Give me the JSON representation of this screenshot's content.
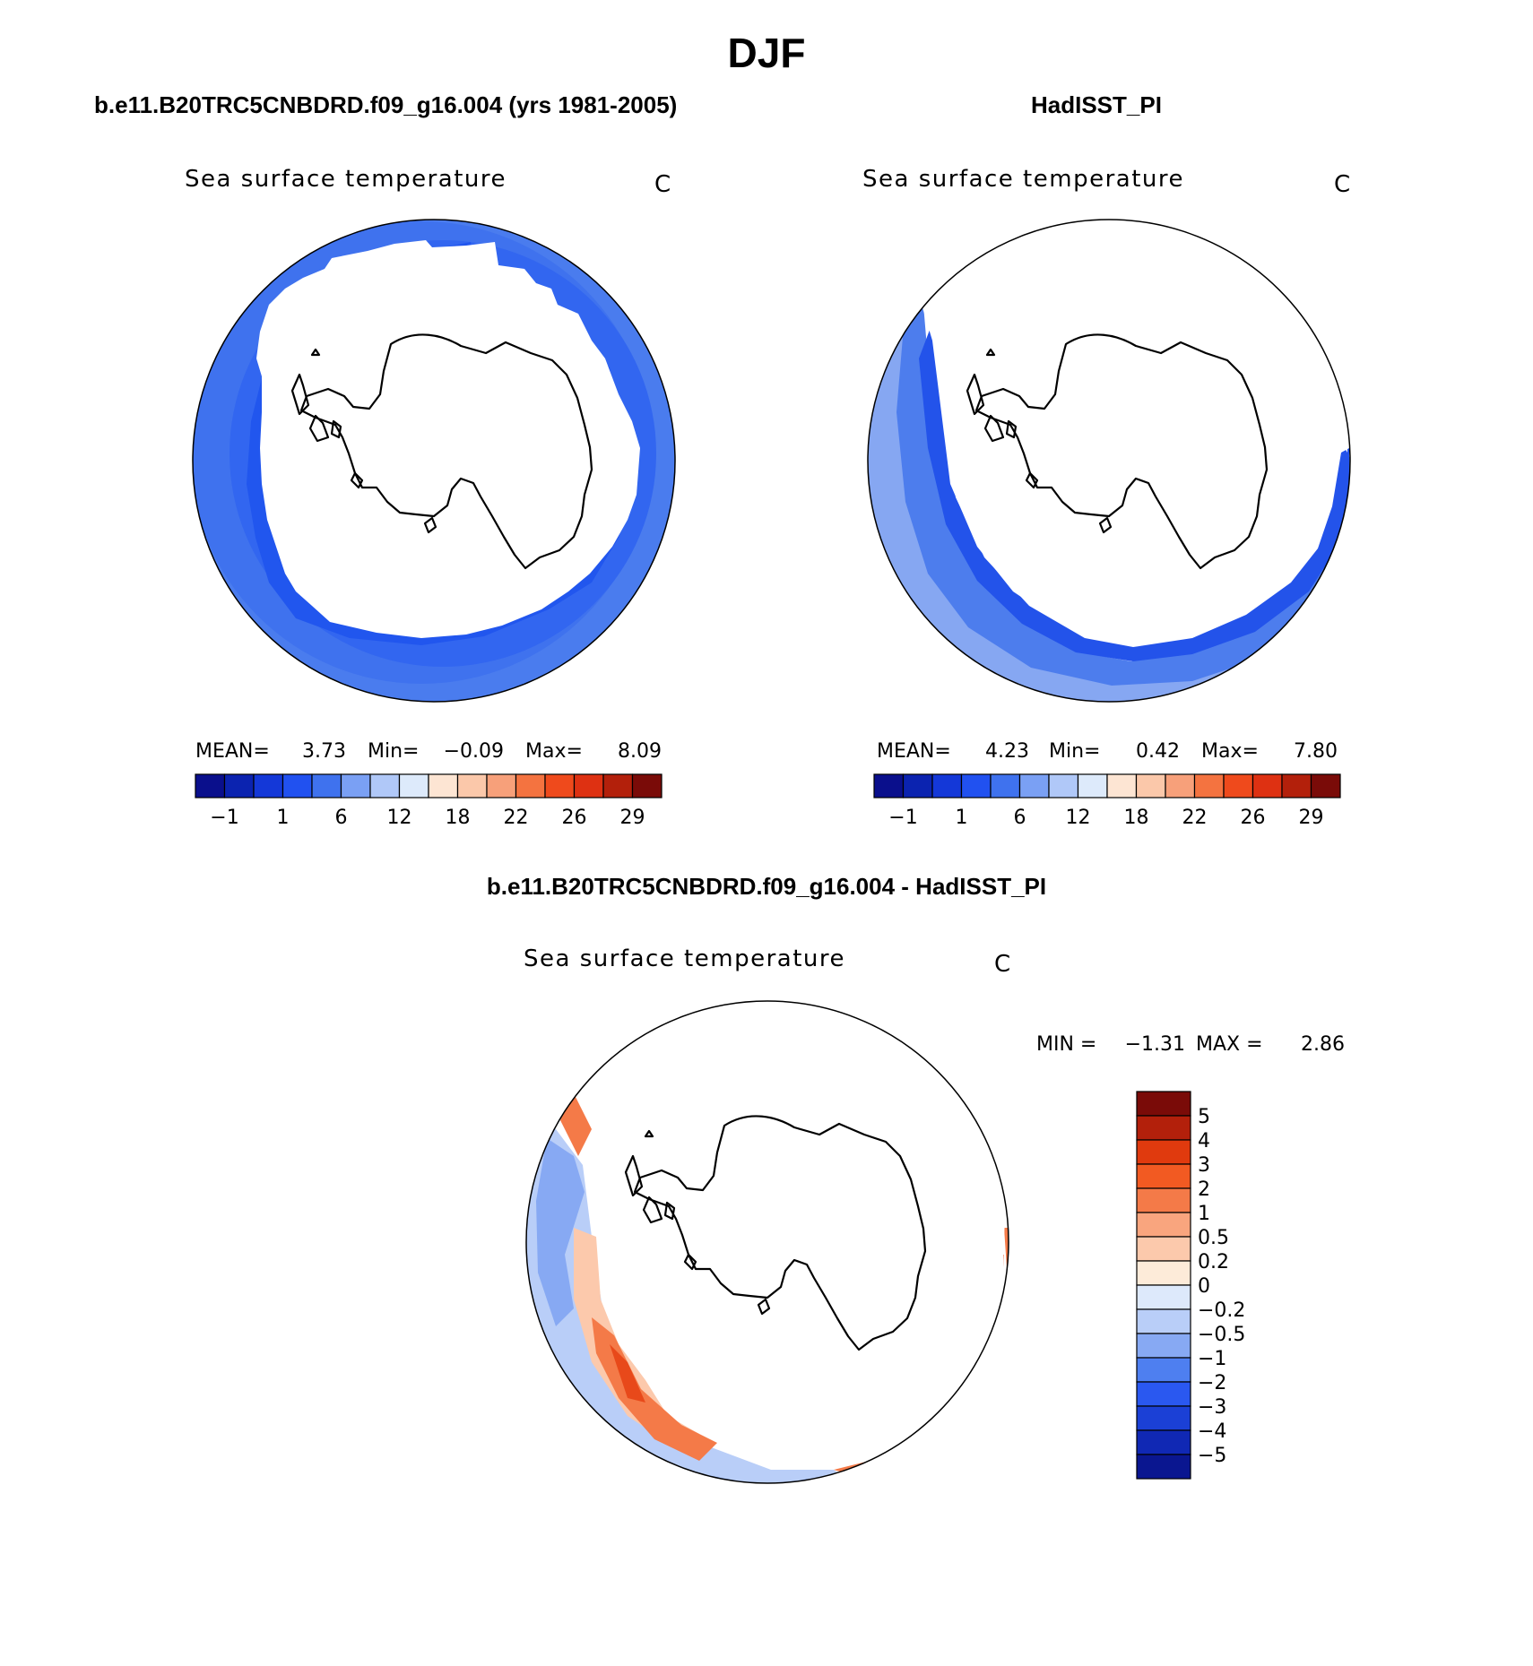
{
  "season": "DJF",
  "panels": [
    {
      "case_title": "b.e11.B20TRC5CNBDRD.f09_g16.004 (yrs 1981-2005)",
      "variable": "Sea surface temperature",
      "units": "C",
      "stats": {
        "mean_label": "MEAN=",
        "mean": "3.73",
        "min_label": "Min=",
        "min": "−0.09",
        "max_label": "Max=",
        "max": "8.09"
      },
      "colorbar": {
        "colors": [
          "#0a0f8c",
          "#0b23b0",
          "#1438d8",
          "#2151f0",
          "#3f72ee",
          "#7aa0f4",
          "#b0c8f8",
          "#ddeafb",
          "#fde5d3",
          "#fbc8aa",
          "#f7a07a",
          "#f47340",
          "#ef4a1c",
          "#de3112",
          "#b3200b",
          "#7a0b08"
        ],
        "tick_labels": [
          "−1",
          "1",
          "6",
          "12",
          "18",
          "22",
          "26",
          "29"
        ]
      }
    },
    {
      "case_title": "HadISST_PI",
      "variable": "Sea surface temperature",
      "units": "C",
      "stats": {
        "mean_label": "MEAN=",
        "mean": "4.23",
        "min_label": "Min=",
        "min": "0.42",
        "max_label": "Max=",
        "max": "7.80"
      },
      "colorbar": {
        "colors": [
          "#0a0f8c",
          "#0b23b0",
          "#1438d8",
          "#2151f0",
          "#3f72ee",
          "#7aa0f4",
          "#b0c8f8",
          "#ddeafb",
          "#fde5d3",
          "#fbc8aa",
          "#f7a07a",
          "#f47340",
          "#ef4a1c",
          "#de3112",
          "#b3200b",
          "#7a0b08"
        ],
        "tick_labels": [
          "−1",
          "1",
          "6",
          "12",
          "18",
          "22",
          "26",
          "29"
        ]
      }
    }
  ],
  "difference": {
    "title": "b.e11.B20TRC5CNBDRD.f09_g16.004 - HadISST_PI",
    "variable": "Sea surface temperature",
    "units": "C",
    "stats": {
      "min_label": "MIN =",
      "min": "−1.31",
      "max_label": "MAX =",
      "max": "2.86"
    },
    "colorbar": {
      "colors_top_to_bottom": [
        "#7a0b08",
        "#b3200b",
        "#e03a0e",
        "#f25a22",
        "#f47a48",
        "#f9a57e",
        "#fcc9ac",
        "#fdebd9",
        "#dde9fb",
        "#b9cef8",
        "#87a9f3",
        "#4e7ff0",
        "#2a58f0",
        "#1b40d6",
        "#1028b4",
        "#0a1690"
      ],
      "tick_labels_top_to_bottom": [
        "5",
        "4",
        "3",
        "2",
        "1",
        "0.5",
        "0.2",
        "0",
        "−0.2",
        "−0.5",
        "−1",
        "−2",
        "−3",
        "−4",
        "−5"
      ]
    }
  },
  "colors": {
    "outline": "#000000",
    "sst_model_outer": "#4a7cee",
    "sst_model_mid": "#3266f0",
    "sst_model_inner": "#2156ee",
    "sst_obs_outer": "#86a7f2",
    "sst_obs_mid": "#4d7ded",
    "sst_obs_inner": "#2353ea",
    "diff_blue": "#b9cef8",
    "diff_blue_mid": "#87a9f3",
    "diff_orange": "#f47a48",
    "diff_red": "#e8491a",
    "diff_pale": "#fcc9ac"
  }
}
